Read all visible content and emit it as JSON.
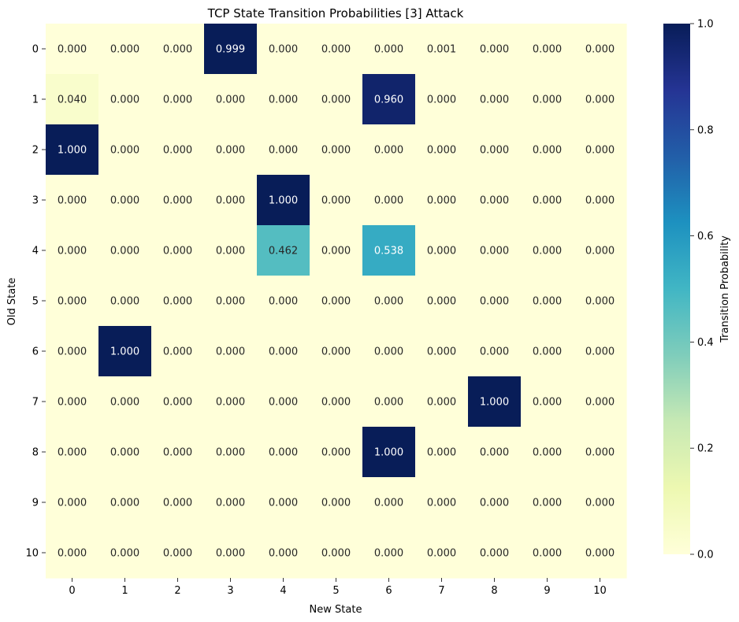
{
  "chart_data": {
    "type": "heatmap",
    "title": "TCP State Transition Probabilities [3] Attack",
    "xlabel": "New State",
    "ylabel": "Old State",
    "x_categories": [
      "0",
      "1",
      "2",
      "3",
      "4",
      "5",
      "6",
      "7",
      "8",
      "9",
      "10"
    ],
    "y_categories": [
      "0",
      "1",
      "2",
      "3",
      "4",
      "5",
      "6",
      "7",
      "8",
      "9",
      "10"
    ],
    "values": [
      [
        0.0,
        0.0,
        0.0,
        0.999,
        0.0,
        0.0,
        0.0,
        0.001,
        0.0,
        0.0,
        0.0
      ],
      [
        0.04,
        0.0,
        0.0,
        0.0,
        0.0,
        0.0,
        0.96,
        0.0,
        0.0,
        0.0,
        0.0
      ],
      [
        1.0,
        0.0,
        0.0,
        0.0,
        0.0,
        0.0,
        0.0,
        0.0,
        0.0,
        0.0,
        0.0
      ],
      [
        0.0,
        0.0,
        0.0,
        0.0,
        1.0,
        0.0,
        0.0,
        0.0,
        0.0,
        0.0,
        0.0
      ],
      [
        0.0,
        0.0,
        0.0,
        0.0,
        0.462,
        0.0,
        0.538,
        0.0,
        0.0,
        0.0,
        0.0
      ],
      [
        0.0,
        0.0,
        0.0,
        0.0,
        0.0,
        0.0,
        0.0,
        0.0,
        0.0,
        0.0,
        0.0
      ],
      [
        0.0,
        1.0,
        0.0,
        0.0,
        0.0,
        0.0,
        0.0,
        0.0,
        0.0,
        0.0,
        0.0
      ],
      [
        0.0,
        0.0,
        0.0,
        0.0,
        0.0,
        0.0,
        0.0,
        0.0,
        1.0,
        0.0,
        0.0
      ],
      [
        0.0,
        0.0,
        0.0,
        0.0,
        0.0,
        0.0,
        1.0,
        0.0,
        0.0,
        0.0,
        0.0
      ],
      [
        0.0,
        0.0,
        0.0,
        0.0,
        0.0,
        0.0,
        0.0,
        0.0,
        0.0,
        0.0,
        0.0
      ],
      [
        0.0,
        0.0,
        0.0,
        0.0,
        0.0,
        0.0,
        0.0,
        0.0,
        0.0,
        0.0,
        0.0
      ]
    ],
    "value_format_decimals": 3,
    "colormap": "YlGnBu",
    "colormap_stops": [
      "#ffffd9",
      "#edf8b1",
      "#c7e9b4",
      "#7fcdbb",
      "#41b6c4",
      "#1d91c0",
      "#225ea8",
      "#253494",
      "#081d58"
    ],
    "colorbar": {
      "label": "Transition Probability",
      "range": [
        0,
        1
      ],
      "ticks": [
        "0.0",
        "0.2",
        "0.4",
        "0.6",
        "0.8",
        "1.0"
      ]
    },
    "annotation_text_colors": {
      "light_cell": "#262626",
      "dark_cell": "#ffffff"
    }
  }
}
